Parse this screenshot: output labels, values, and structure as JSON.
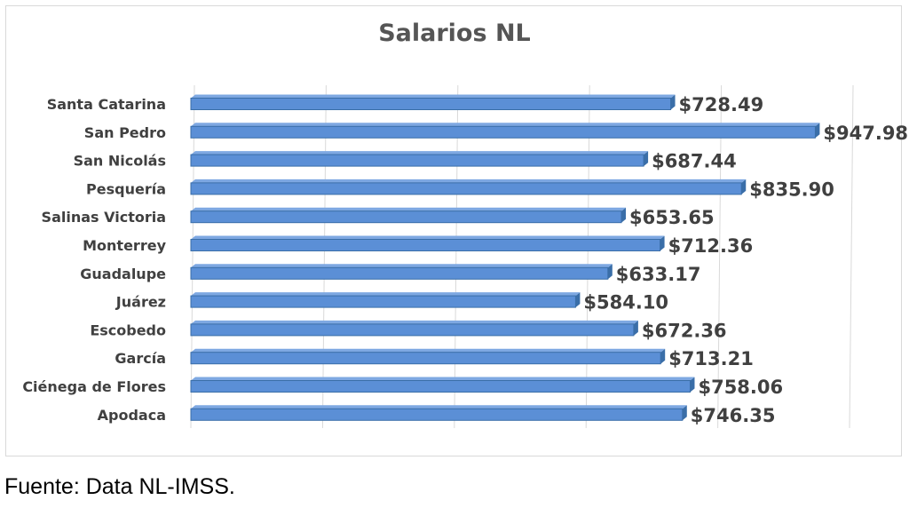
{
  "chart_data": {
    "type": "bar",
    "orientation": "horizontal",
    "title": "Salarios NL",
    "categories": [
      "Santa Catarina",
      "San Pedro",
      "San Nicolás",
      "Pesquería",
      "Salinas Victoria",
      "Monterrey",
      "Guadalupe",
      "Juárez",
      "Escobedo",
      "García",
      "Ciénega de Flores",
      "Apodaca"
    ],
    "values": [
      728.49,
      947.98,
      687.44,
      835.9,
      653.65,
      712.36,
      633.17,
      584.1,
      672.36,
      713.21,
      758.06,
      746.35
    ],
    "value_labels": [
      "$728.49",
      "$947.98",
      "$687.44",
      "$835.90",
      "$653.65",
      "$712.36",
      "$633.17",
      "$584.10",
      "$672.36",
      "$713.21",
      "$758.06",
      "$746.35"
    ],
    "xlabel": "",
    "ylabel": "",
    "xlim": [
      0,
      1200
    ],
    "grid": true,
    "bar_color": "#5b8fd6",
    "bar_edge_color": "#3a6ea8"
  },
  "source_note": "Fuente: Data NL-IMSS."
}
